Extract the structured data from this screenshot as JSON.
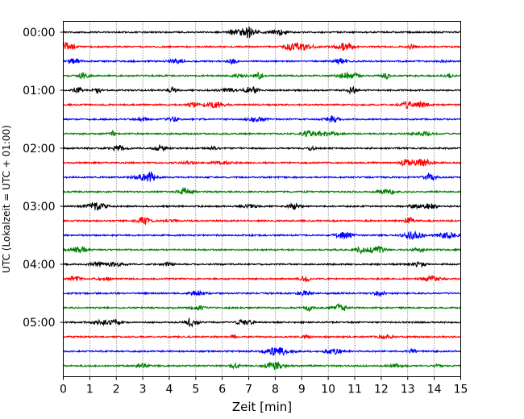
{
  "chart_data": {
    "type": "line",
    "title": "",
    "xlabel": "Zeit  [min]",
    "ylabel": "UTC (Lokalzeit = UTC + 01:00)",
    "xlim": [
      0,
      15
    ],
    "x_ticks": [
      0,
      1,
      2,
      3,
      4,
      5,
      6,
      7,
      8,
      9,
      10,
      11,
      12,
      13,
      14,
      15
    ],
    "y_ticks": [
      "00:00",
      "01:00",
      "02:00",
      "03:00",
      "04:00",
      "05:00"
    ],
    "trace_interval_minutes": 15,
    "trace_count": 24,
    "trace_colors": [
      "#000000",
      "#ff0000",
      "#0000ff",
      "#008000"
    ],
    "grid": "vertical-dotted",
    "legend": "none"
  }
}
